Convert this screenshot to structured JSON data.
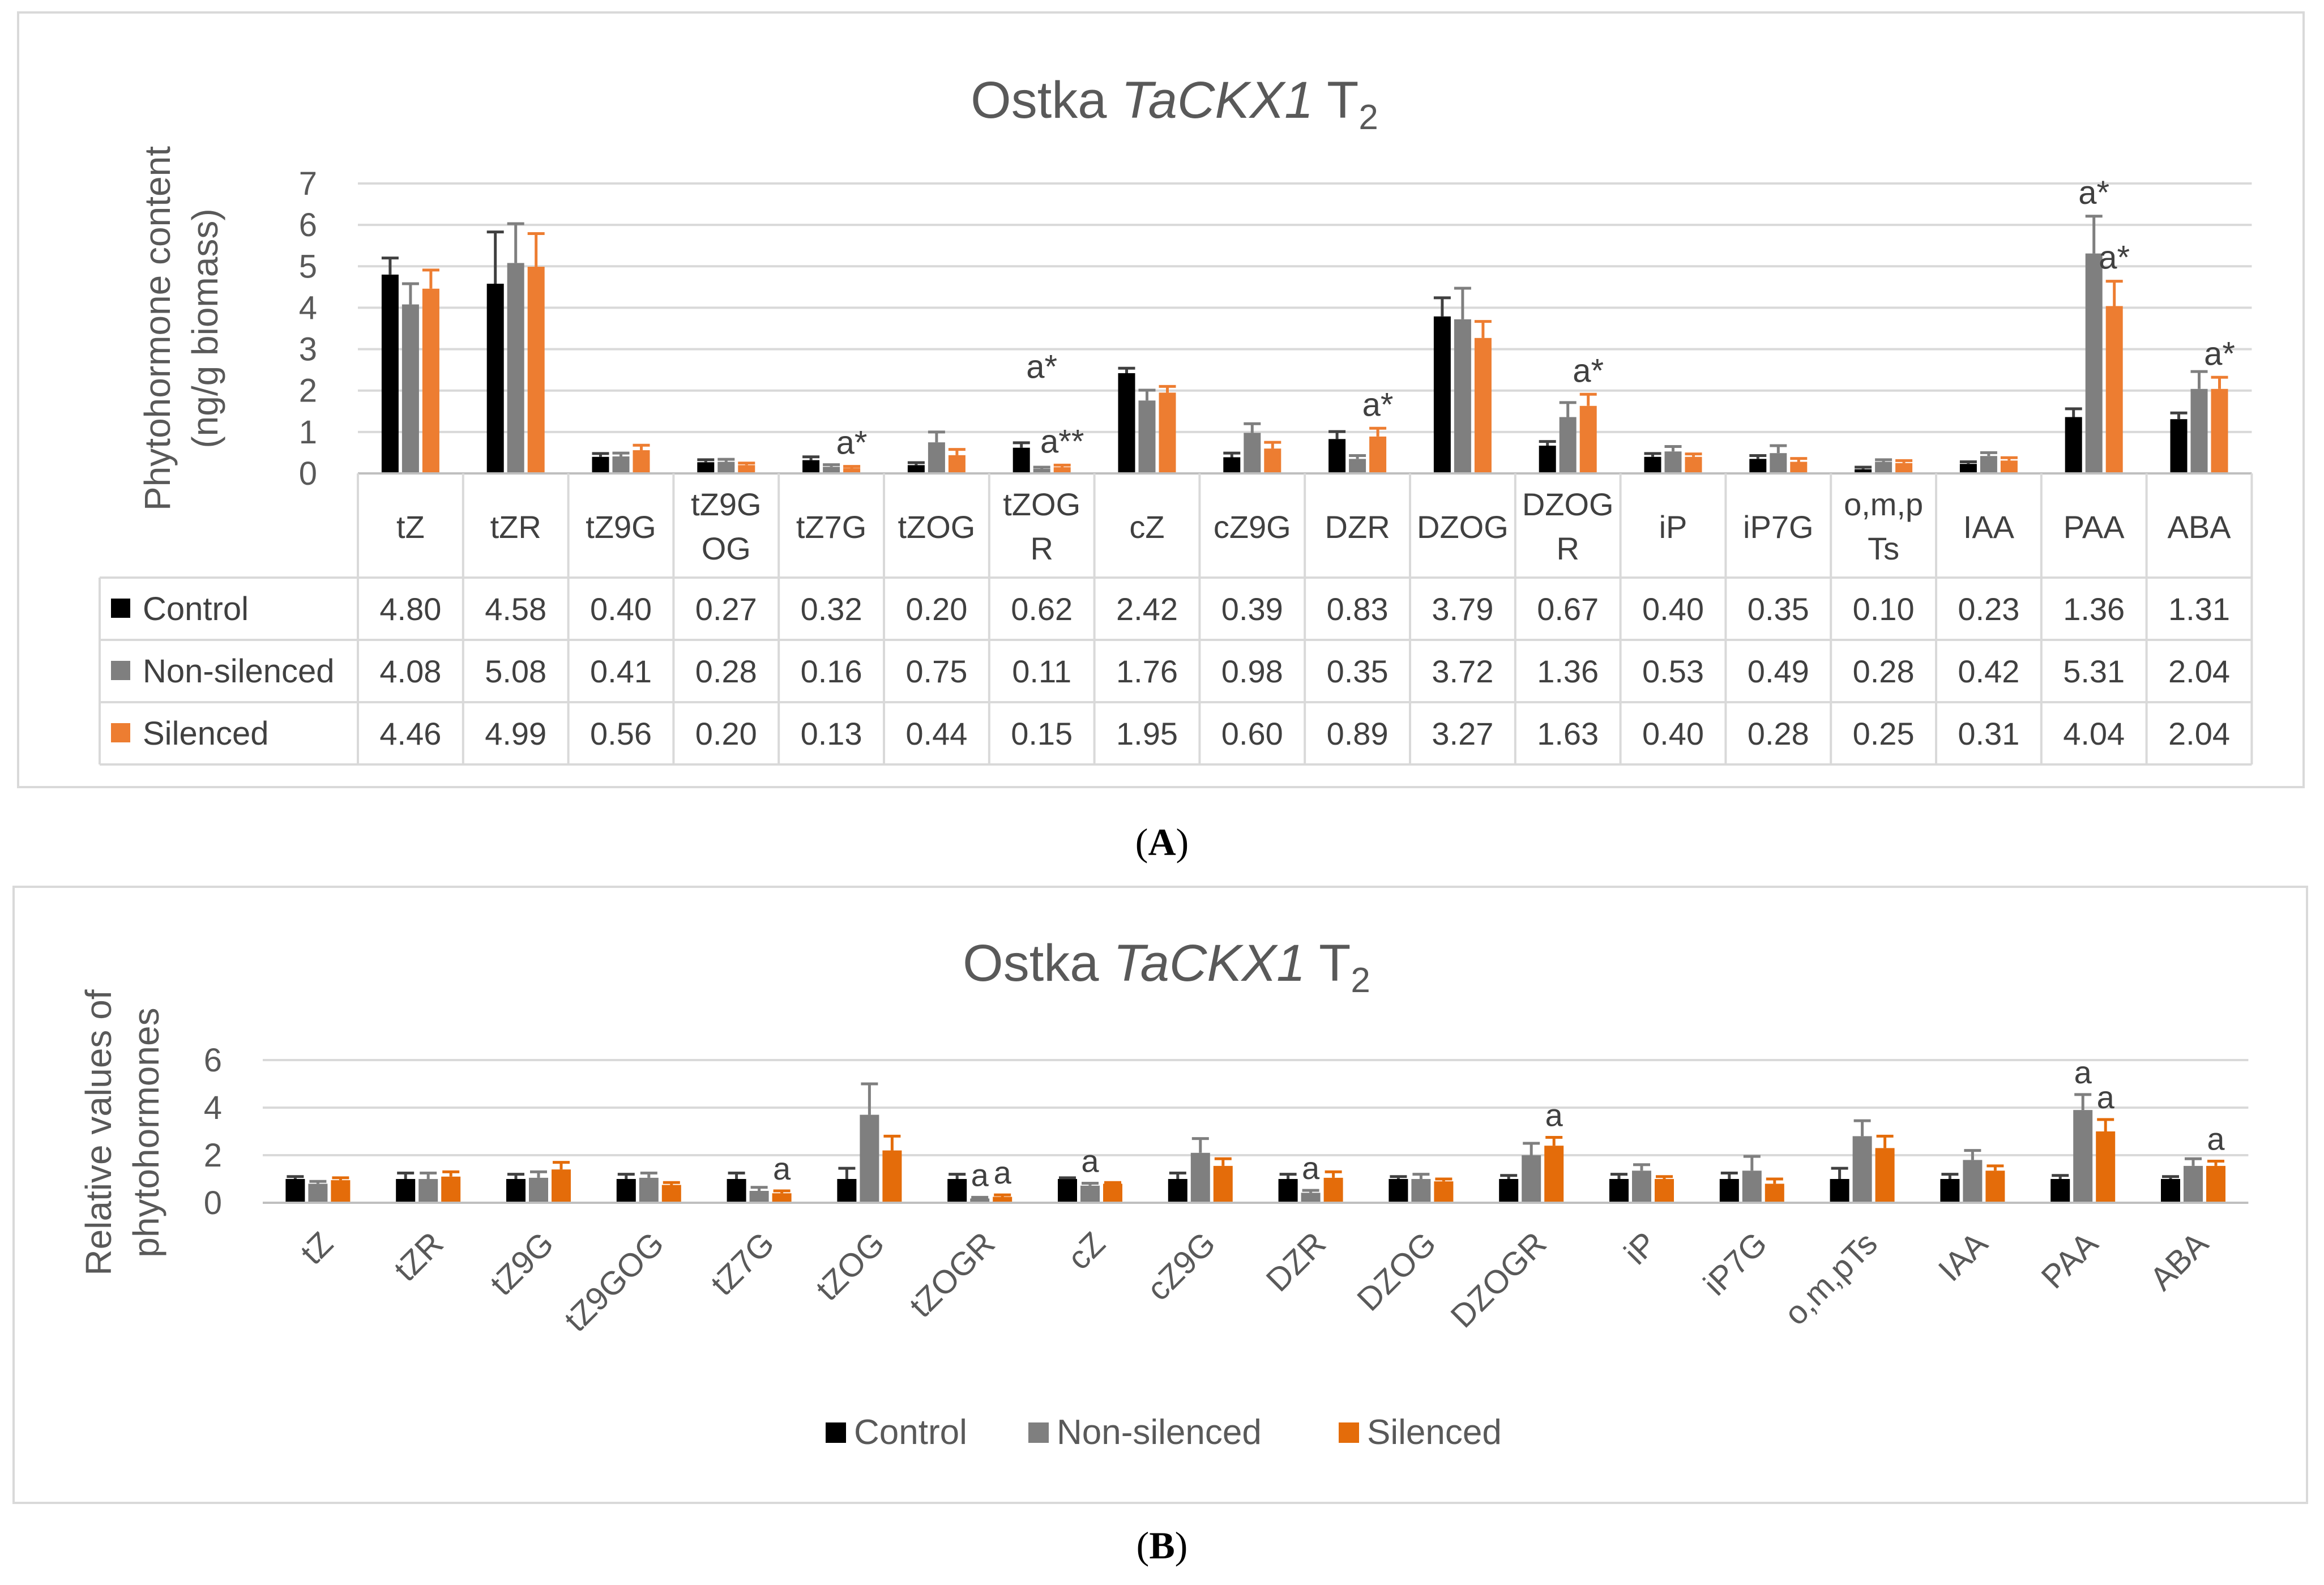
{
  "panel_labels": [
    "A",
    "B"
  ],
  "chart_data": [
    {
      "type": "bar",
      "title": "Ostka TaCKX1 T2",
      "title_parts": {
        "prefix": "Ostka ",
        "italic": "TaCKX1",
        "suffix": " T",
        "subscript": "2"
      },
      "ylabel": [
        "Phytohormone content",
        "(ng/g biomass)"
      ],
      "ylim": [
        0,
        7
      ],
      "yticks": [
        0,
        1,
        2,
        3,
        4,
        5,
        6,
        7
      ],
      "grid": true,
      "legend": "data table below the plot",
      "categories": [
        "tZ",
        "tZR",
        "tZ9G",
        "tZ9G OG",
        "tZ7G",
        "tZOG",
        "tZOG R",
        "cZ",
        "cZ9G",
        "DZR",
        "DZOG",
        "DZOG R",
        "iP",
        "iP7G",
        "o,m,p Ts",
        "IAA",
        "PAA",
        "ABA"
      ],
      "colors": {
        "Control": "#000000",
        "Non-silenced": "#7f7f7f",
        "Silenced": "#ed7d31"
      },
      "series": [
        {
          "name": "Control",
          "values": [
            4.8,
            4.58,
            0.4,
            0.27,
            0.32,
            0.2,
            0.62,
            2.42,
            0.39,
            0.83,
            3.79,
            0.67,
            0.4,
            0.35,
            0.1,
            0.23,
            1.36,
            1.31
          ],
          "display": [
            "4.80",
            "4.58",
            "0.40",
            "0.27",
            "0.32",
            "0.20",
            "0.62",
            "2.42",
            "0.39",
            "0.83",
            "3.79",
            "0.67",
            "0.40",
            "0.35",
            "0.10",
            "0.23",
            "1.36",
            "1.31"
          ],
          "errors": [
            0.4,
            1.25,
            0.08,
            0.06,
            0.08,
            0.06,
            0.12,
            0.12,
            0.1,
            0.18,
            0.45,
            0.1,
            0.08,
            0.08,
            0.05,
            0.05,
            0.2,
            0.15
          ]
        },
        {
          "name": "Non-silenced",
          "values": [
            4.08,
            5.08,
            0.41,
            0.28,
            0.16,
            0.75,
            0.11,
            1.76,
            0.98,
            0.35,
            3.72,
            1.36,
            0.53,
            0.49,
            0.28,
            0.42,
            5.31,
            2.04
          ],
          "display": [
            "4.08",
            "5.08",
            "0.41",
            "0.28",
            "0.16",
            "0.75",
            "0.11",
            "1.76",
            "0.98",
            "0.35",
            "3.72",
            "1.36",
            "0.53",
            "0.49",
            "0.28",
            "0.42",
            "5.31",
            "2.04"
          ],
          "errors": [
            0.5,
            0.95,
            0.08,
            0.06,
            0.05,
            0.25,
            0.04,
            0.25,
            0.22,
            0.08,
            0.75,
            0.35,
            0.12,
            0.18,
            0.05,
            0.08,
            0.9,
            0.42
          ]
        },
        {
          "name": "Silenced",
          "values": [
            4.46,
            4.99,
            0.56,
            0.2,
            0.13,
            0.44,
            0.15,
            1.95,
            0.6,
            0.89,
            3.27,
            1.63,
            0.4,
            0.28,
            0.25,
            0.31,
            4.04,
            2.04
          ],
          "display": [
            "4.46",
            "4.99",
            "0.56",
            "0.20",
            "0.13",
            "0.44",
            "0.15",
            "1.95",
            "0.60",
            "0.89",
            "3.27",
            "1.63",
            "0.40",
            "0.28",
            "0.25",
            "0.31",
            "4.04",
            "2.04"
          ],
          "errors": [
            0.45,
            0.8,
            0.12,
            0.05,
            0.04,
            0.14,
            0.05,
            0.15,
            0.15,
            0.2,
            0.4,
            0.28,
            0.07,
            0.08,
            0.06,
            0.07,
            0.6,
            0.28
          ]
        }
      ],
      "annotations": [
        {
          "text": "a*",
          "category": "tZ7G",
          "series": "Silenced"
        },
        {
          "text": "a*",
          "category": "tZOG R",
          "series": "Non-silenced",
          "y": 2.0
        },
        {
          "text": "a**",
          "category": "tZOG R",
          "series": "Silenced"
        },
        {
          "text": "a*",
          "category": "DZR",
          "series": "Silenced"
        },
        {
          "text": "a*",
          "category": "DZOG R",
          "series": "Silenced"
        },
        {
          "text": "a*",
          "category": "PAA",
          "series": "Non-silenced"
        },
        {
          "text": "a*",
          "category": "PAA",
          "series": "Silenced"
        },
        {
          "text": "a*",
          "category": "ABA",
          "series": "Silenced"
        }
      ]
    },
    {
      "type": "bar",
      "title": "Ostka TaCKX1 T2",
      "title_parts": {
        "prefix": "Ostka ",
        "italic": "TaCKX1",
        "suffix": " T",
        "subscript": "2"
      },
      "ylabel": [
        "Relative values of",
        "phytohormones"
      ],
      "ylim": [
        0,
        6
      ],
      "yticks": [
        0,
        2,
        4,
        6
      ],
      "grid": true,
      "legend": "bottom",
      "categories": [
        "tZ",
        "tZR",
        "tZ9G",
        "tZ9GOG",
        "tZ7G",
        "tZOG",
        "tZOGR",
        "cZ",
        "cZ9G",
        "DZR",
        "DZOG",
        "DZOGR",
        "iP",
        "iP7G",
        "o,m,pTs",
        "IAA",
        "PAA",
        "ABA"
      ],
      "colors": {
        "Control": "#000000",
        "Non-silenced": "#7f7f7f",
        "Silenced": "#e46c0a"
      },
      "series": [
        {
          "name": "Control",
          "values": [
            1,
            1,
            1,
            1,
            1,
            1,
            1,
            1,
            1,
            1,
            1,
            1,
            1,
            1,
            1,
            1,
            1,
            1
          ],
          "errors": [
            0.1,
            0.25,
            0.2,
            0.2,
            0.25,
            0.45,
            0.2,
            0.05,
            0.25,
            0.2,
            0.1,
            0.15,
            0.2,
            0.25,
            0.45,
            0.2,
            0.15,
            0.1
          ]
        },
        {
          "name": "Non-silenced",
          "values": [
            0.8,
            1.0,
            1.05,
            1.05,
            0.5,
            3.7,
            0.18,
            0.72,
            2.1,
            0.42,
            1.0,
            2.0,
            1.35,
            1.35,
            2.8,
            1.8,
            3.9,
            1.55
          ],
          "errors": [
            0.1,
            0.25,
            0.25,
            0.2,
            0.15,
            1.3,
            0.05,
            0.1,
            0.6,
            0.1,
            0.2,
            0.5,
            0.25,
            0.6,
            0.65,
            0.4,
            0.65,
            0.3
          ]
        },
        {
          "name": "Silenced",
          "values": [
            0.95,
            1.1,
            1.4,
            0.75,
            0.4,
            2.2,
            0.25,
            0.8,
            1.55,
            1.05,
            0.9,
            2.4,
            1.0,
            0.8,
            2.3,
            1.35,
            3.0,
            1.55
          ],
          "errors": [
            0.1,
            0.2,
            0.3,
            0.1,
            0.1,
            0.6,
            0.08,
            0.05,
            0.3,
            0.25,
            0.1,
            0.35,
            0.1,
            0.2,
            0.5,
            0.2,
            0.5,
            0.2
          ]
        }
      ],
      "annotations": [
        {
          "text": "a",
          "category": "tZ7G",
          "series": "Silenced"
        },
        {
          "text": "a",
          "category": "tZOGR",
          "series": "Non-silenced"
        },
        {
          "text": "a",
          "category": "tZOGR",
          "series": "Silenced"
        },
        {
          "text": "a",
          "category": "cZ",
          "series": "Non-silenced"
        },
        {
          "text": "a",
          "category": "DZR",
          "series": "Non-silenced"
        },
        {
          "text": "a",
          "category": "DZOGR",
          "series": "Silenced"
        },
        {
          "text": "a",
          "category": "PAA",
          "series": "Non-silenced"
        },
        {
          "text": "a",
          "category": "PAA",
          "series": "Silenced"
        },
        {
          "text": "a",
          "category": "ABA",
          "series": "Silenced"
        }
      ]
    }
  ]
}
